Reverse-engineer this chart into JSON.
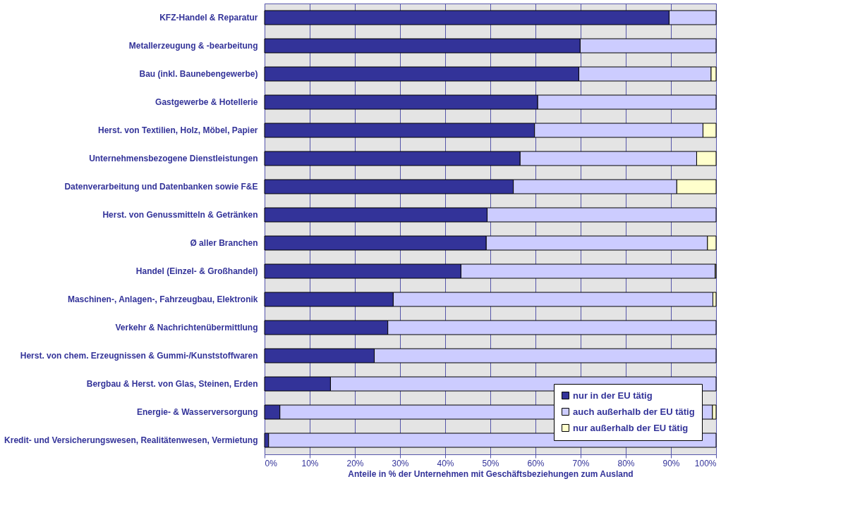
{
  "chart_data": {
    "type": "bar",
    "orientation": "horizontal",
    "stacked": true,
    "xlabel": "Anteile in % der Unternehmen mit Geschäftsbeziehungen zum Ausland",
    "categories": [
      "KFZ-Handel & Reparatur",
      "Metallerzeugung & -bearbeitung",
      "Bau (inkl. Baunebengewerbe)",
      "Gastgewerbe & Hotellerie",
      "Herst. von Textilien, Holz, Möbel, Papier",
      "Unternehmensbezogene Dienstleistungen",
      "Datenverarbeitung und Datenbanken sowie F&E",
      "Herst. von Genussmitteln & Getränken",
      "Ø aller Branchen",
      "Handel (Einzel- & Großhandel)",
      "Maschinen-, Anlagen-, Fahrzeugbau, Elektronik",
      "Verkehr & Nachrichtenübermittlung",
      "Herst. von chem. Erzeugnissen & Gummi-/Kunststoffwaren",
      "Bergbau & Herst. von Glas, Steinen, Erden",
      "Energie- & Wasserversorgung",
      "Kredit- und Versicherungswesen, Realitätenwesen, Vermietung"
    ],
    "series": [
      {
        "name": "nur in der EU tätig",
        "color": "#333399",
        "values": [
          89.6,
          69.9,
          69.6,
          60.5,
          59.8,
          56.6,
          55.1,
          49.3,
          49.1,
          43.5,
          28.5,
          27.3,
          24.3,
          14.6,
          3.4,
          0.9
        ]
      },
      {
        "name": "auch außerhalb der EU tätig",
        "color": "#ccccff",
        "values": [
          10.4,
          30.1,
          29.3,
          39.5,
          37.3,
          39.1,
          36.2,
          50.7,
          49.0,
          56.3,
          70.8,
          72.7,
          75.7,
          85.4,
          95.8,
          99.1
        ]
      },
      {
        "name": "nur außerhalb der EU tätig",
        "color": "#ffffcc",
        "values": [
          null,
          null,
          1.1,
          null,
          2.9,
          4.3,
          8.7,
          null,
          1.9,
          0.2,
          0.7,
          null,
          null,
          null,
          0.8,
          null
        ]
      }
    ],
    "xlim": [
      0,
      100
    ],
    "xticks": [
      {
        "value": 0,
        "label": "0%"
      },
      {
        "value": 10,
        "label": "10%"
      },
      {
        "value": 20,
        "label": "20%"
      },
      {
        "value": 30,
        "label": "30%"
      },
      {
        "value": 40,
        "label": "40%"
      },
      {
        "value": 50,
        "label": "50%"
      },
      {
        "value": 60,
        "label": "60%"
      },
      {
        "value": 70,
        "label": "70%"
      },
      {
        "value": 80,
        "label": "80%"
      },
      {
        "value": 90,
        "label": "90%"
      },
      {
        "value": 100,
        "label": "100%"
      }
    ],
    "grid": "x",
    "legend": "bottom right"
  }
}
